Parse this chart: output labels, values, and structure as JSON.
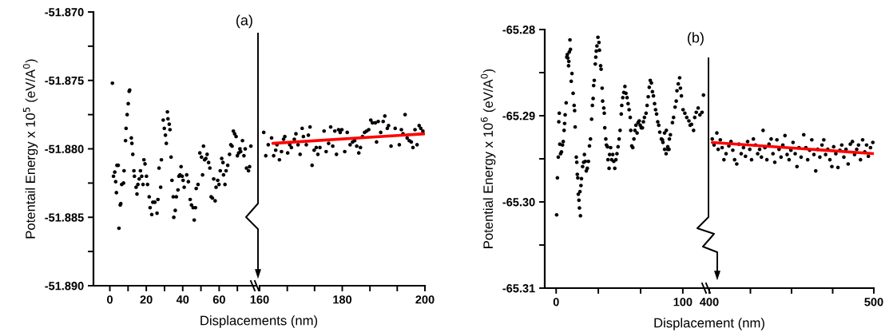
{
  "chart_data": [
    {
      "type": "scatter",
      "ylabel": "Potentail Energy x 10$^{5}$ (eV/A$^{0}$)",
      "xlabel": "Displacements (nm)",
      "annotations": [
        "(a)"
      ],
      "marker": "circle",
      "xlim": [
        -9,
        80
      ],
      "xticks": [
        0,
        {
          "value": 10,
          "label": null
        },
        20,
        {
          "value": 30,
          "label": null
        },
        40,
        {
          "value": 50,
          "label": null
        },
        60,
        {
          "value": 70,
          "label": null
        }
      ],
      "ylim": [
        -51.89,
        -51.87
      ],
      "yticks": [
        {
          "value": -51.89,
          "label": "-51.890"
        },
        {
          "value": -51.8875,
          "label": null
        },
        {
          "value": -51.885,
          "label": "-51.885"
        },
        {
          "value": -51.8825,
          "label": null
        },
        {
          "value": -51.88,
          "label": "-51.880"
        },
        {
          "value": -51.8775,
          "label": null
        },
        {
          "value": -51.875,
          "label": "-51.875"
        },
        {
          "value": -51.8725,
          "label": null
        },
        {
          "value": -51.87,
          "label": "-51.870"
        }
      ],
      "series": [
        {
          "color": "#000000",
          "x": [
            1.4,
            2.0,
            2.7,
            3.9,
            4.6,
            3.2,
            3.6,
            5.0,
            5.7,
            6.0,
            6.5,
            7.5,
            7.8,
            8.6,
            8.9,
            9.5,
            10.1,
            10.6,
            10.9,
            11.8,
            12.1,
            12.6,
            13.2,
            13.5,
            14.4,
            14.9,
            15.4,
            16.1,
            16.8,
            17.5,
            18.2,
            18.7,
            19.3,
            20.1,
            20.7,
            21.6,
            22.1,
            23.0,
            23.6,
            24.7,
            25.9,
            26.4,
            27.0,
            27.9,
            28.3,
            29.3,
            29.9,
            30.5,
            31.0,
            31.6,
            31.9,
            32.6,
            33.0,
            33.6,
            34.1,
            34.8,
            35.1,
            35.9,
            36.5,
            37.4,
            37.9,
            38.5,
            39.1,
            39.7,
            40.2,
            40.8,
            42.2,
            43.1,
            44.1,
            44.8,
            45.7,
            46.3,
            47.0,
            47.4,
            48.4,
            49.4,
            50.3,
            50.9,
            51.4,
            52.0,
            52.7,
            53.4,
            54.2,
            54.9,
            55.6,
            56.3,
            57.0,
            57.8,
            58.3,
            59.2,
            59.9,
            60.6,
            61.4,
            62.1,
            62.4,
            63.2,
            63.8,
            64.7,
            65.7,
            66.4,
            67.1,
            67.8,
            68.5,
            69.3,
            70.0,
            70.7,
            71.4,
            71.8,
            72.8,
            73.6,
            74.3,
            75.0,
            76.1,
            76.7,
            77.4
          ],
          "values": [
            -51.8752,
            -51.882,
            -51.8817,
            -51.8812,
            -51.8812,
            -51.8824,
            -51.8832,
            -51.8858,
            -51.8841,
            -51.884,
            -51.8826,
            -51.8825,
            -51.8816,
            -51.8794,
            -51.8785,
            -51.8775,
            -51.8767,
            -51.8758,
            -51.8757,
            -51.8792,
            -51.8796,
            -51.8804,
            -51.8816,
            -51.882,
            -51.8828,
            -51.8833,
            -51.8826,
            -51.8822,
            -51.8816,
            -51.882,
            -51.8826,
            -51.8808,
            -51.8811,
            -51.882,
            -51.8826,
            -51.8835,
            -51.8843,
            -51.8848,
            -51.8839,
            -51.8839,
            -51.8847,
            -51.8837,
            -51.8814,
            -51.8828,
            -51.8808,
            -51.8779,
            -51.8785,
            -51.879,
            -51.8796,
            -51.8773,
            -51.8778,
            -51.8782,
            -51.8786,
            -51.8806,
            -51.8823,
            -51.8835,
            -51.885,
            -51.8845,
            -51.8835,
            -51.883,
            -51.882,
            -51.8819,
            -51.8813,
            -51.882,
            -51.8823,
            -51.8828,
            -51.8819,
            -51.8824,
            -51.8837,
            -51.8841,
            -51.8843,
            -51.8852,
            -51.8843,
            -51.8829,
            -51.8826,
            -51.8803,
            -51.8806,
            -51.8819,
            -51.8798,
            -51.8808,
            -51.8807,
            -51.8804,
            -51.881,
            -51.8814,
            -51.8835,
            -51.8836,
            -51.8822,
            -51.8838,
            -51.8828,
            -51.8823,
            -51.8826,
            -51.8816,
            -51.8807,
            -51.881,
            -51.8819,
            -51.8826,
            -51.8816,
            -51.8812,
            -51.8804,
            -51.8797,
            -51.8798,
            -51.8787,
            -51.8789,
            -51.8791,
            -51.8805,
            -51.8803,
            -51.88,
            -51.8802,
            -51.8794,
            -51.8805,
            -51.88,
            -51.8814,
            -51.8816,
            -51.8813,
            -51.8798
          ]
        }
      ]
    },
    {
      "type": "scatter",
      "tick_labels": "x",
      "marker": "circle",
      "xlim": [
        160,
        200
      ],
      "xticks": [
        160,
        {
          "value": 166.7,
          "label": null
        },
        {
          "value": 173.3,
          "label": null
        },
        180,
        {
          "value": 186.7,
          "label": null
        },
        {
          "value": 193.3,
          "label": null
        },
        200
      ],
      "ylim": [
        -51.89,
        -51.87
      ],
      "series": [
        {
          "color": "#000000",
          "x": [
            161.0,
            161.5,
            162.1,
            162.9,
            163.4,
            163.9,
            164.2,
            164.8,
            165.3,
            165.8,
            166.1,
            166.8,
            167.3,
            167.7,
            168.4,
            168.8,
            169.3,
            169.8,
            170.3,
            170.6,
            171.3,
            171.8,
            172.2,
            172.7,
            173.2,
            173.7,
            174.1,
            174.6,
            175.6,
            176.1,
            176.7,
            177.2,
            177.7,
            178.2,
            178.6,
            179.1,
            179.5,
            179.9,
            180.6,
            181.2,
            181.9,
            182.5,
            183.0,
            183.5,
            184.0,
            184.4,
            184.9,
            185.4,
            185.9,
            186.4,
            186.9,
            187.3,
            188.0,
            188.3,
            188.7,
            189.3,
            189.9,
            190.3,
            190.9,
            191.2,
            191.8,
            192.8,
            193.8,
            194.3,
            194.7,
            195.2,
            195.7,
            196.2,
            196.7,
            197.1,
            197.6,
            198.1,
            198.6,
            199.0,
            199.5
          ],
          "values": [
            -51.8788,
            -51.8805,
            -51.8797,
            -51.8792,
            -51.8805,
            -51.8801,
            -51.8797,
            -51.8808,
            -51.8802,
            -51.8793,
            -51.8791,
            -51.8803,
            -51.8797,
            -51.8799,
            -51.8793,
            -51.8789,
            -51.8797,
            -51.8804,
            -51.8785,
            -51.8791,
            -51.8797,
            -51.879,
            -51.8784,
            -51.8812,
            -51.8801,
            -51.8799,
            -51.8804,
            -51.8799,
            -51.8787,
            -51.8802,
            -51.8796,
            -51.8784,
            -51.8798,
            -51.8787,
            -51.8804,
            -51.8786,
            -51.8788,
            -51.8786,
            -51.8802,
            -51.8788,
            -51.8797,
            -51.8795,
            -51.8794,
            -51.8798,
            -51.8803,
            -51.8799,
            -51.8791,
            -51.8788,
            -51.8787,
            -51.8786,
            -51.8779,
            -51.8781,
            -51.8781,
            -51.8795,
            -51.878,
            -51.8788,
            -51.878,
            -51.8776,
            -51.8785,
            -51.8783,
            -51.8798,
            -51.8785,
            -51.8797,
            -51.8786,
            -51.8789,
            -51.8775,
            -51.8792,
            -51.8794,
            -51.8795,
            -51.8799,
            -51.8786,
            -51.8797,
            -51.8783,
            -51.8785,
            -51.8787
          ]
        },
        {
          "type": "line",
          "marker": "none",
          "color": "#ff0000",
          "x": [
            163.2,
            200
          ],
          "values": [
            -51.8796,
            -51.8789
          ]
        }
      ]
    },
    {
      "type": "scatter",
      "ylabel": "Potential Energy x 10$^{6}$ (eV/A$^{0}$)",
      "xlabel": "Displacement (nm)",
      "annotations": [
        "(b)"
      ],
      "marker": "circle",
      "xlim": [
        -9,
        119
      ],
      "xticks": [
        0,
        {
          "value": 33.3,
          "label": null
        },
        {
          "value": 66.7,
          "label": null
        },
        100
      ],
      "ylim": [
        -65.31,
        -65.28
      ],
      "yticks": [
        -65.31,
        {
          "value": -65.305,
          "label": null
        },
        {
          "value": -65.3,
          "label": "-65.30"
        },
        {
          "value": -65.295,
          "label": null
        },
        -65.29,
        {
          "value": -65.285,
          "label": null
        },
        -65.28
      ],
      "series": [
        {
          "color": "#000000",
          "x": [
            0.4,
            1.0,
            1.7,
            2.1,
            2.5,
            2.9,
            3.5,
            4.2,
            5.0,
            5.6,
            6.3,
            6.7,
            7.1,
            7.9,
            8.4,
            8.8,
            9.2,
            9.8,
            10.0,
            10.4,
            10.9,
            11.3,
            11.9,
            12.5,
            13.4,
            14.2,
            14.6,
            15.0,
            15.9,
            16.3,
            16.7,
            17.1,
            17.5,
            18.0,
            18.4,
            18.8,
            19.2,
            19.6,
            20.0,
            20.9,
            21.7,
            22.3,
            23.0,
            23.8,
            24.6,
            25.5,
            26.3,
            27.1,
            28.0,
            28.6,
            29.2,
            29.6,
            30.1,
            30.9,
            31.3,
            31.7,
            32.2,
            33.0,
            33.8,
            34.2,
            35.1,
            35.5,
            36.3,
            36.7,
            37.6,
            38.0,
            38.4,
            39.2,
            39.7,
            40.5,
            40.9,
            41.8,
            42.2,
            43.0,
            43.8,
            44.7,
            45.5,
            46.3,
            47.2,
            48.0,
            48.9,
            49.7,
            50.5,
            51.4,
            51.8,
            52.6,
            53.4,
            54.3,
            55.1,
            56.0,
            56.8,
            57.6,
            58.5,
            58.9,
            59.7,
            60.5,
            61.4,
            62.2,
            63.0,
            63.9,
            64.7,
            65.6,
            66.4,
            67.2,
            68.1,
            68.9,
            69.7,
            71.0,
            71.8,
            72.7,
            73.5,
            74.3,
            75.2,
            76.0,
            76.8,
            77.7,
            78.5,
            79.3,
            80.2,
            81.0,
            81.8,
            83.1,
            84.3,
            85.6,
            86.8,
            88.1,
            89.4,
            83.9,
            85.6,
            87.0,
            88.1,
            89.1,
            90.2,
            91.8,
            92.7,
            93.9,
            94.8,
            95.4,
            96.4,
            97.5,
            98.1,
            98.9,
            100.2,
            101.6,
            103.1,
            104.8,
            105.8,
            106.9,
            108.5,
            109.4,
            110.6,
            112.1,
            113.5,
            115.2,
            116.3
          ],
          "values": [
            -65.3015,
            -65.2972,
            -65.2948,
            -65.2907,
            -65.2897,
            -65.2933,
            -65.2944,
            -65.2942,
            -65.2934,
            -65.293,
            -65.2917,
            -65.2909,
            -65.2899,
            -65.2885,
            -65.2832,
            -65.2829,
            -65.2833,
            -65.2842,
            -65.2837,
            -65.2826,
            -65.2812,
            -65.2823,
            -65.286,
            -65.2851,
            -65.2874,
            -65.2888,
            -65.2894,
            -65.2913,
            -65.2948,
            -65.2954,
            -65.2968,
            -65.2972,
            -65.2991,
            -65.2998,
            -65.3007,
            -65.2988,
            -65.3016,
            -65.2981,
            -65.2973,
            -65.2959,
            -65.2954,
            -65.2945,
            -65.2953,
            -65.2964,
            -65.2961,
            -65.2953,
            -65.2935,
            -65.2927,
            -65.2904,
            -65.2888,
            -65.288,
            -65.2865,
            -65.2859,
            -65.284,
            -65.2832,
            -65.2825,
            -65.2819,
            -65.2809,
            -65.2815,
            -65.2824,
            -65.2842,
            -65.2846,
            -65.2868,
            -65.2883,
            -65.2891,
            -65.2897,
            -65.2914,
            -65.2927,
            -65.2934,
            -65.2936,
            -65.2951,
            -65.2961,
            -65.2945,
            -65.2937,
            -65.2951,
            -65.2945,
            -65.2953,
            -65.2961,
            -65.2951,
            -65.2944,
            -65.2936,
            -65.2927,
            -65.2917,
            -65.2898,
            -65.2888,
            -65.2879,
            -65.2873,
            -65.2866,
            -65.2874,
            -65.2879,
            -65.2886,
            -65.2893,
            -65.2902,
            -65.2917,
            -65.2935,
            -65.2937,
            -65.2927,
            -65.2917,
            -65.2911,
            -65.292,
            -65.2908,
            -65.2906,
            -65.2911,
            -65.2914,
            -65.2914,
            -65.2907,
            -65.2902,
            -65.2897,
            -65.2888,
            -65.2878,
            -65.2867,
            -65.2859,
            -65.2862,
            -65.2872,
            -65.2877,
            -65.2886,
            -65.2893,
            -65.2898,
            -65.2907,
            -65.2911,
            -65.2919,
            -65.2927,
            -65.2931,
            -65.2939,
            -65.2944,
            -65.2939,
            -65.2927,
            -65.2928,
            -65.292,
            -65.2917,
            -65.2936,
            -65.2939,
            -65.2922,
            -65.2908,
            -65.2902,
            -65.289,
            -65.2883,
            -65.2871,
            -65.2863,
            -65.2856,
            -65.2868,
            -65.2877,
            -65.2893,
            -65.2897,
            -65.2902,
            -65.2906,
            -65.2911,
            -65.291,
            -65.2917,
            -65.2902,
            -65.2896,
            -65.2891,
            -65.2899,
            -65.2896,
            -65.2876
          ]
        }
      ]
    },
    {
      "type": "scatter",
      "tick_labels": "x",
      "marker": "circle",
      "xlim": [
        400,
        500
      ],
      "xticks": [
        400,
        {
          "value": 425,
          "label": null
        },
        {
          "value": 450,
          "label": null
        },
        {
          "value": 475,
          "label": null
        },
        500
      ],
      "ylim": [
        -65.31,
        -65.28
      ],
      "series": [
        {
          "color": "#000000",
          "x": [
            401.8,
            402.9,
            404.6,
            405.4,
            406.7,
            407.8,
            408.9,
            410.2,
            411.9,
            413.2,
            414.3,
            415.4,
            416.7,
            418.0,
            419.4,
            420.8,
            422.0,
            423.3,
            424.6,
            425.7,
            426.8,
            428.1,
            429.4,
            430.6,
            431.7,
            432.7,
            433.8,
            435.0,
            436.3,
            437.6,
            438.7,
            439.8,
            441.1,
            442.4,
            443.6,
            444.7,
            446.0,
            447.3,
            448.5,
            449.6,
            450.9,
            452.2,
            453.3,
            454.5,
            455.8,
            457.4,
            458.7,
            459.8,
            461.0,
            462.3,
            463.6,
            464.7,
            465.9,
            467.2,
            468.5,
            469.6,
            470.7,
            472.0,
            473.3,
            474.5,
            475.6,
            476.9,
            478.2,
            479.4,
            480.5,
            481.8,
            483.1,
            484.4,
            485.7,
            487.0,
            488.3,
            489.6,
            490.7,
            491.9,
            493.2,
            494.5,
            495.6,
            496.7,
            498.0,
            499.4
          ],
          "values": [
            -65.2927,
            -65.2934,
            -65.292,
            -65.2939,
            -65.2928,
            -65.2937,
            -65.2951,
            -65.2944,
            -65.2935,
            -65.293,
            -65.294,
            -65.2951,
            -65.2956,
            -65.2933,
            -65.2944,
            -65.2937,
            -65.2947,
            -65.293,
            -65.2939,
            -65.2951,
            -65.2927,
            -65.2934,
            -65.2944,
            -65.2939,
            -65.2948,
            -65.2917,
            -65.2937,
            -65.2951,
            -65.2933,
            -65.2927,
            -65.2944,
            -65.2954,
            -65.2928,
            -65.2939,
            -65.2948,
            -65.2934,
            -65.2923,
            -65.2945,
            -65.2951,
            -65.294,
            -65.2931,
            -65.2944,
            -65.2959,
            -65.2937,
            -65.2948,
            -65.2922,
            -65.2937,
            -65.2951,
            -65.294,
            -65.2928,
            -65.2945,
            -65.2964,
            -65.2939,
            -65.2948,
            -65.2934,
            -65.2928,
            -65.2945,
            -65.2939,
            -65.2951,
            -65.2959,
            -65.2936,
            -65.2944,
            -65.296,
            -65.294,
            -65.2934,
            -65.2948,
            -65.2939,
            -65.2956,
            -65.2933,
            -65.293,
            -65.2945,
            -65.2939,
            -65.2934,
            -65.2951,
            -65.2928,
            -65.2942,
            -65.2934,
            -65.2947,
            -65.2937,
            -65.2931
          ]
        },
        {
          "type": "line",
          "marker": "none",
          "color": "#ff0000",
          "x": [
            401.8,
            500
          ],
          "values": [
            -65.2931,
            -65.2944
          ]
        }
      ]
    }
  ]
}
